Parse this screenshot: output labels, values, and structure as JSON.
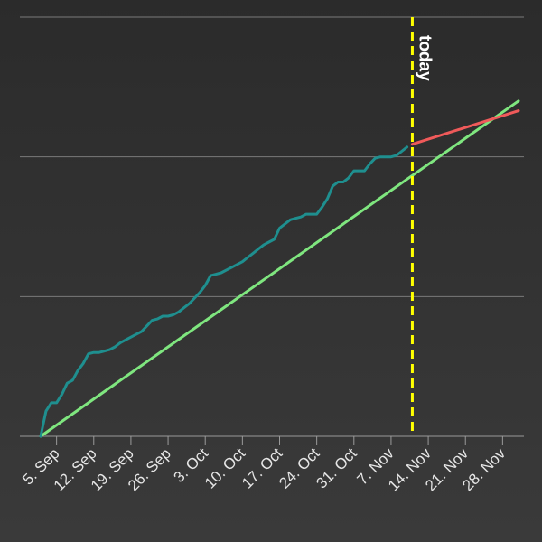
{
  "chart_data": {
    "type": "line",
    "title": "",
    "xlabel": "",
    "ylabel": "",
    "x_axis": {
      "type": "date",
      "range": [
        "2022-09-01",
        "2022-12-01"
      ],
      "tick_labels": [
        "5. Sep",
        "12. Sep",
        "19. Sep",
        "26. Sep",
        "3. Oct",
        "10. Oct",
        "17. Oct",
        "24. Oct",
        "31. Oct",
        "7. Nov",
        "14. Nov",
        "21. Nov",
        "28. Nov"
      ],
      "tick_dates": [
        "2022-09-05",
        "2022-09-12",
        "2022-09-19",
        "2022-09-26",
        "2022-10-03",
        "2022-10-10",
        "2022-10-17",
        "2022-10-24",
        "2022-10-31",
        "2022-11-07",
        "2022-11-14",
        "2022-11-21",
        "2022-11-28"
      ]
    },
    "y_axis": {
      "range": [
        0,
        300
      ],
      "gridlines": [
        0,
        100,
        200,
        300
      ],
      "tick_labels_shown": false
    },
    "grid": true,
    "legend": "none",
    "series": [
      {
        "role": "actual",
        "color": "#1f8f8f",
        "points": [
          [
            "2022-09-02",
            0
          ],
          [
            "2022-09-03",
            18
          ],
          [
            "2022-09-04",
            24
          ],
          [
            "2022-09-05",
            24
          ],
          [
            "2022-09-06",
            30
          ],
          [
            "2022-09-07",
            38
          ],
          [
            "2022-09-08",
            40
          ],
          [
            "2022-09-09",
            47
          ],
          [
            "2022-09-10",
            52
          ],
          [
            "2022-09-11",
            59
          ],
          [
            "2022-09-12",
            60
          ],
          [
            "2022-09-13",
            60
          ],
          [
            "2022-09-14",
            61
          ],
          [
            "2022-09-15",
            62
          ],
          [
            "2022-09-16",
            64
          ],
          [
            "2022-09-17",
            67
          ],
          [
            "2022-09-18",
            69
          ],
          [
            "2022-09-19",
            71
          ],
          [
            "2022-09-20",
            73
          ],
          [
            "2022-09-21",
            75
          ],
          [
            "2022-09-22",
            79
          ],
          [
            "2022-09-23",
            83
          ],
          [
            "2022-09-24",
            84
          ],
          [
            "2022-09-25",
            86
          ],
          [
            "2022-09-26",
            86
          ],
          [
            "2022-09-27",
            87
          ],
          [
            "2022-09-28",
            89
          ],
          [
            "2022-09-29",
            92
          ],
          [
            "2022-09-30",
            95
          ],
          [
            "2022-10-01",
            99
          ],
          [
            "2022-10-02",
            103
          ],
          [
            "2022-10-03",
            108
          ],
          [
            "2022-10-04",
            115
          ],
          [
            "2022-10-05",
            116
          ],
          [
            "2022-10-06",
            117
          ],
          [
            "2022-10-07",
            119
          ],
          [
            "2022-10-08",
            121
          ],
          [
            "2022-10-09",
            123
          ],
          [
            "2022-10-10",
            125
          ],
          [
            "2022-10-11",
            128
          ],
          [
            "2022-10-12",
            131
          ],
          [
            "2022-10-13",
            134
          ],
          [
            "2022-10-14",
            137
          ],
          [
            "2022-10-15",
            139
          ],
          [
            "2022-10-16",
            141
          ],
          [
            "2022-10-17",
            149
          ],
          [
            "2022-10-18",
            152
          ],
          [
            "2022-10-19",
            155
          ],
          [
            "2022-10-20",
            156
          ],
          [
            "2022-10-21",
            157
          ],
          [
            "2022-10-22",
            159
          ],
          [
            "2022-10-23",
            159
          ],
          [
            "2022-10-24",
            159
          ],
          [
            "2022-10-25",
            164
          ],
          [
            "2022-10-26",
            170
          ],
          [
            "2022-10-27",
            179
          ],
          [
            "2022-10-28",
            182
          ],
          [
            "2022-10-29",
            182
          ],
          [
            "2022-10-30",
            185
          ],
          [
            "2022-10-31",
            190
          ],
          [
            "2022-11-01",
            190
          ],
          [
            "2022-11-02",
            190
          ],
          [
            "2022-11-03",
            195
          ],
          [
            "2022-11-04",
            199
          ],
          [
            "2022-11-05",
            200
          ],
          [
            "2022-11-06",
            200
          ],
          [
            "2022-11-07",
            200
          ],
          [
            "2022-11-08",
            201
          ],
          [
            "2022-11-09",
            204
          ],
          [
            "2022-11-10",
            207
          ]
        ]
      },
      {
        "role": "ideal",
        "color": "#7fe67f",
        "points": [
          [
            "2022-09-02",
            0
          ],
          [
            "2022-12-01",
            240
          ]
        ]
      },
      {
        "role": "projection",
        "color": "#f05a5a",
        "points": [
          [
            "2022-11-11",
            209
          ],
          [
            "2022-12-01",
            233
          ]
        ]
      }
    ],
    "annotations": [
      {
        "label": "today",
        "date": "2022-11-11",
        "color": "#ffff00",
        "style": "dashed"
      }
    ]
  }
}
